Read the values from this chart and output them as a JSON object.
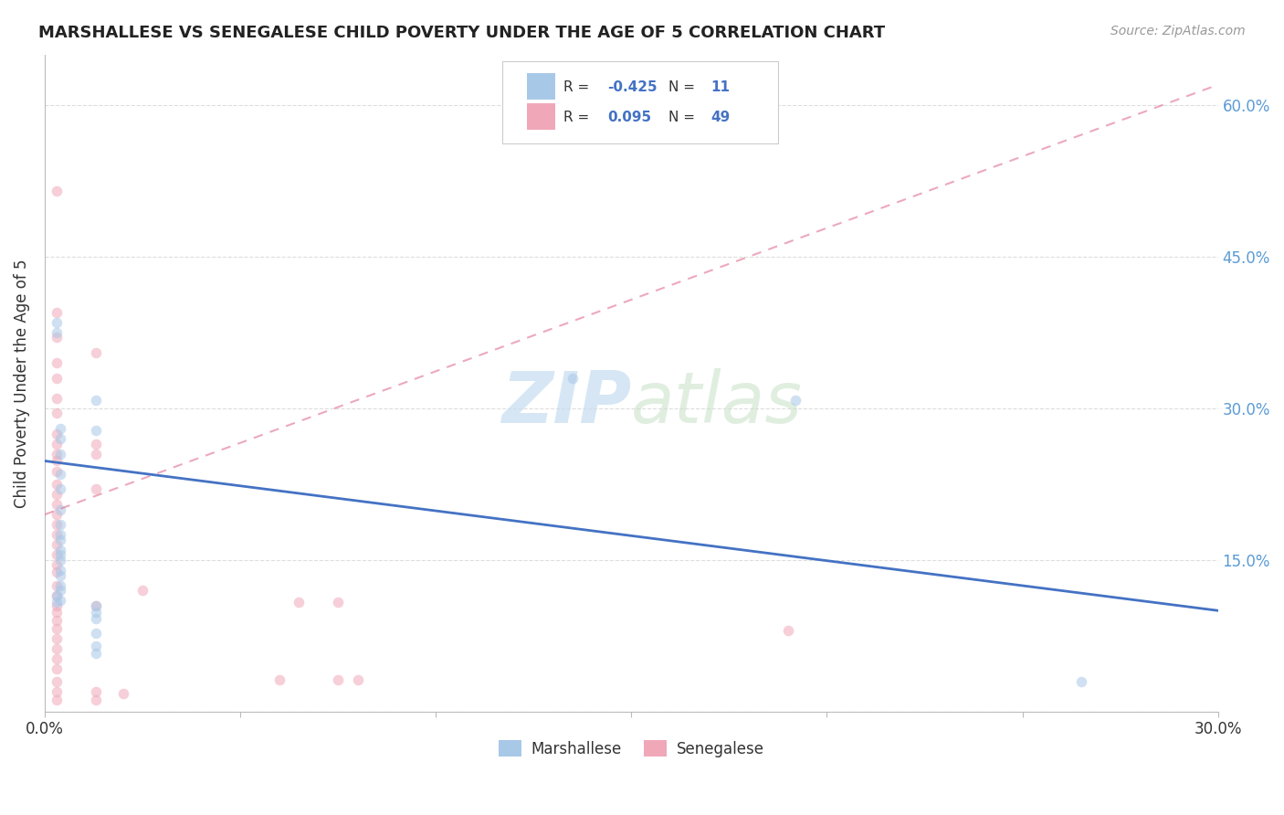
{
  "title": "MARSHALLESE VS SENEGALESE CHILD POVERTY UNDER THE AGE OF 5 CORRELATION CHART",
  "source": "Source: ZipAtlas.com",
  "ylabel": "Child Poverty Under the Age of 5",
  "xlim": [
    0.0,
    0.3
  ],
  "ylim": [
    0.0,
    0.65
  ],
  "yticks": [
    0.0,
    0.15,
    0.3,
    0.45,
    0.6
  ],
  "marshallese_color": "#A8C8E8",
  "senegalese_color": "#F0A8B8",
  "marshallese_line_color": "#4472C4",
  "senegalese_line_color": "#E07090",
  "background_color": "#FFFFFF",
  "grid_color": "#DDDDDD",
  "marshallese_points": [
    [
      0.003,
      0.385
    ],
    [
      0.003,
      0.375
    ],
    [
      0.004,
      0.28
    ],
    [
      0.004,
      0.27
    ],
    [
      0.004,
      0.255
    ],
    [
      0.004,
      0.235
    ],
    [
      0.004,
      0.22
    ],
    [
      0.004,
      0.2
    ],
    [
      0.004,
      0.185
    ],
    [
      0.004,
      0.175
    ],
    [
      0.004,
      0.17
    ],
    [
      0.004,
      0.16
    ],
    [
      0.004,
      0.155
    ],
    [
      0.004,
      0.15
    ],
    [
      0.004,
      0.14
    ],
    [
      0.004,
      0.135
    ],
    [
      0.004,
      0.125
    ],
    [
      0.004,
      0.12
    ],
    [
      0.004,
      0.11
    ],
    [
      0.013,
      0.308
    ],
    [
      0.013,
      0.278
    ],
    [
      0.135,
      0.33
    ],
    [
      0.192,
      0.308
    ],
    [
      0.013,
      0.105
    ],
    [
      0.013,
      0.098
    ],
    [
      0.013,
      0.092
    ],
    [
      0.013,
      0.078
    ],
    [
      0.013,
      0.065
    ],
    [
      0.013,
      0.058
    ],
    [
      0.265,
      0.03
    ],
    [
      0.003,
      0.115
    ],
    [
      0.003,
      0.108
    ]
  ],
  "senegalese_points": [
    [
      0.003,
      0.515
    ],
    [
      0.003,
      0.395
    ],
    [
      0.003,
      0.37
    ],
    [
      0.003,
      0.345
    ],
    [
      0.003,
      0.33
    ],
    [
      0.003,
      0.31
    ],
    [
      0.003,
      0.295
    ],
    [
      0.003,
      0.275
    ],
    [
      0.003,
      0.265
    ],
    [
      0.003,
      0.255
    ],
    [
      0.003,
      0.248
    ],
    [
      0.003,
      0.238
    ],
    [
      0.003,
      0.225
    ],
    [
      0.003,
      0.215
    ],
    [
      0.003,
      0.205
    ],
    [
      0.003,
      0.195
    ],
    [
      0.003,
      0.185
    ],
    [
      0.003,
      0.175
    ],
    [
      0.003,
      0.165
    ],
    [
      0.003,
      0.155
    ],
    [
      0.003,
      0.145
    ],
    [
      0.003,
      0.138
    ],
    [
      0.003,
      0.125
    ],
    [
      0.003,
      0.115
    ],
    [
      0.003,
      0.105
    ],
    [
      0.003,
      0.098
    ],
    [
      0.003,
      0.09
    ],
    [
      0.003,
      0.082
    ],
    [
      0.003,
      0.072
    ],
    [
      0.003,
      0.062
    ],
    [
      0.003,
      0.052
    ],
    [
      0.003,
      0.042
    ],
    [
      0.003,
      0.03
    ],
    [
      0.003,
      0.02
    ],
    [
      0.003,
      0.012
    ],
    [
      0.013,
      0.355
    ],
    [
      0.013,
      0.265
    ],
    [
      0.013,
      0.255
    ],
    [
      0.013,
      0.22
    ],
    [
      0.013,
      0.105
    ],
    [
      0.013,
      0.02
    ],
    [
      0.013,
      0.012
    ],
    [
      0.02,
      0.018
    ],
    [
      0.025,
      0.12
    ],
    [
      0.06,
      0.032
    ],
    [
      0.065,
      0.108
    ],
    [
      0.075,
      0.108
    ],
    [
      0.075,
      0.032
    ],
    [
      0.08,
      0.032
    ],
    [
      0.19,
      0.08
    ]
  ],
  "marshallese_trend_x": [
    0.0,
    0.3
  ],
  "marshallese_trend_y": [
    0.248,
    0.1
  ],
  "senegalese_trend_x": [
    0.0,
    0.3
  ],
  "senegalese_trend_y": [
    0.195,
    0.62
  ],
  "marker_size": 70,
  "marker_alpha": 0.55,
  "line_width": 2.0,
  "watermark_zip": "ZIP",
  "watermark_atlas": "atlas",
  "watermark_color_zip": "#C8DCF0",
  "watermark_color_atlas": "#D0E4D0"
}
